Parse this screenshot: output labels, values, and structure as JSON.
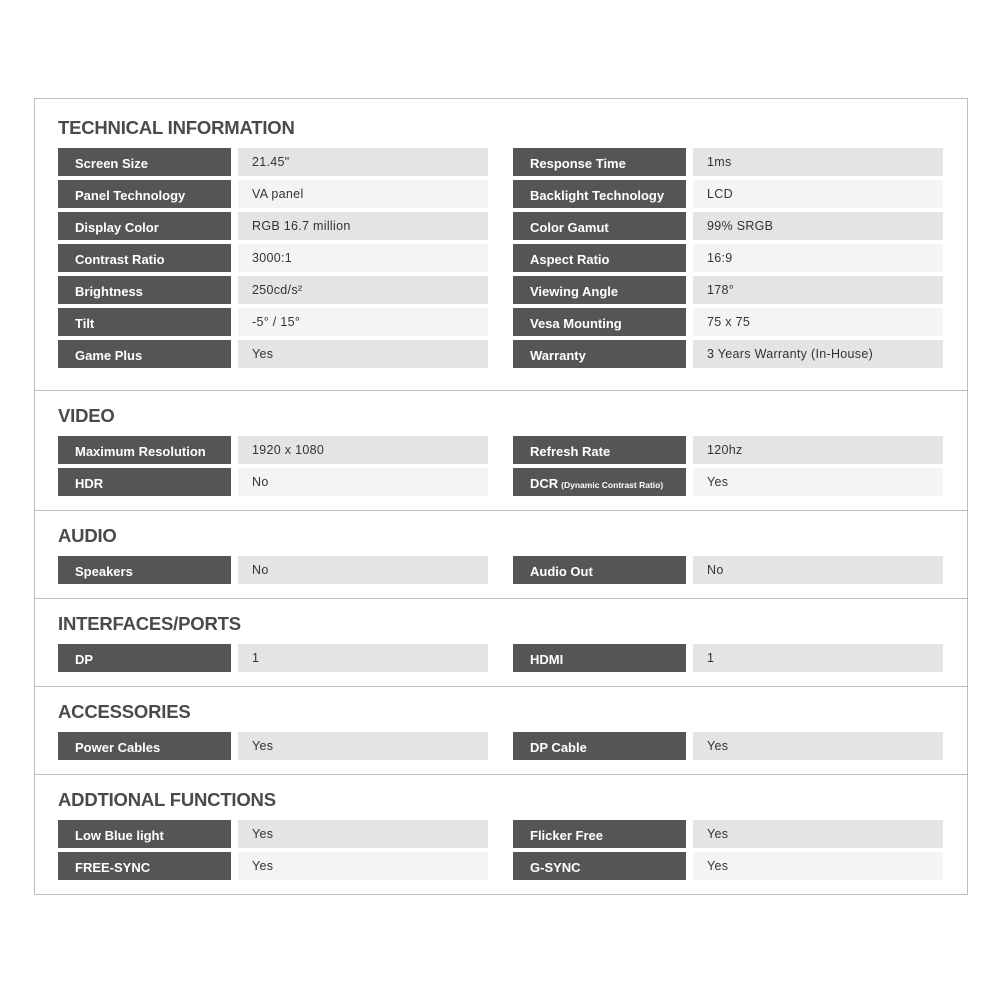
{
  "sections": [
    {
      "title": "TECHNICAL INFORMATION",
      "rows": [
        [
          {
            "label": "Screen Size",
            "value": "21.45\""
          },
          {
            "label": "Response Time",
            "value": "1ms"
          }
        ],
        [
          {
            "label": "Panel Technology",
            "value": "VA panel"
          },
          {
            "label": "Backlight Technology",
            "value": "LCD"
          }
        ],
        [
          {
            "label": "Display Color",
            "value": "RGB 16.7 million"
          },
          {
            "label": "Color Gamut",
            "value": "99% SRGB"
          }
        ],
        [
          {
            "label": "Contrast Ratio",
            "value": "3000:1"
          },
          {
            "label": "Aspect Ratio",
            "value": "16:9"
          }
        ],
        [
          {
            "label": "Brightness",
            "value": "250cd/s²"
          },
          {
            "label": "Viewing Angle",
            "value": "178°"
          }
        ],
        [
          {
            "label": "Tilt",
            "value": "-5° / 15°"
          },
          {
            "label": "Vesa Mounting",
            "value": "75 x 75"
          }
        ],
        [
          {
            "label": "Game Plus",
            "value": "Yes"
          },
          {
            "label": "Warranty",
            "value": "3 Years Warranty (In-House)"
          }
        ]
      ]
    },
    {
      "title": "VIDEO",
      "rows": [
        [
          {
            "label": "Maximum Resolution",
            "value": "1920 x 1080"
          },
          {
            "label": "Refresh Rate",
            "value": "120hz"
          }
        ],
        [
          {
            "label": "HDR",
            "value": "No"
          },
          {
            "label": "DCR",
            "sublabel": "(Dynamic Contrast Ratio)",
            "value": "Yes"
          }
        ]
      ]
    },
    {
      "title": "AUDIO",
      "rows": [
        [
          {
            "label": "Speakers",
            "value": "No"
          },
          {
            "label": "Audio Out",
            "value": "No"
          }
        ]
      ]
    },
    {
      "title": "INTERFACES/PORTS",
      "rows": [
        [
          {
            "label": "DP",
            "value": "1"
          },
          {
            "label": "HDMI",
            "value": "1"
          }
        ]
      ]
    },
    {
      "title": "ACCESSORIES",
      "rows": [
        [
          {
            "label": "Power Cables",
            "value": "Yes"
          },
          {
            "label": "DP Cable",
            "value": "Yes"
          }
        ]
      ]
    },
    {
      "title": "ADDTIONAL FUNCTIONS",
      "rows": [
        [
          {
            "label": "Low Blue light",
            "value": "Yes"
          },
          {
            "label": "Flicker Free",
            "value": "Yes"
          }
        ],
        [
          {
            "label": "FREE-SYNC",
            "value": "Yes"
          },
          {
            "label": "G-SYNC",
            "value": "Yes"
          }
        ]
      ]
    }
  ],
  "colors": {
    "label_bg": "#555555",
    "value_bg_odd": "#e4e4e4",
    "value_bg_even": "#f4f4f4",
    "title": "#4a4a4a",
    "border": "#bdbdbd"
  }
}
